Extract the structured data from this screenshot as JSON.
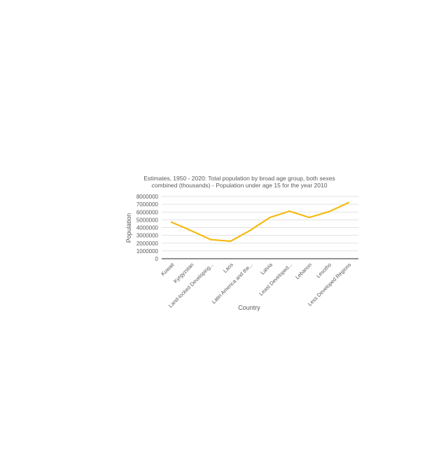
{
  "chart_data": {
    "type": "line",
    "title_line1": "Estimates, 1950 - 2020: Total population by broad age group, both sexes",
    "title_line2": "combined (thousands) - Population under age 15 for the year 2010",
    "xlabel": "Country",
    "ylabel": "Population",
    "categories": [
      "Kuwait",
      "Kyrgyzstan",
      "Land-locked Developing...",
      "Laos",
      "Latin America and the...",
      "Latvia",
      "Least Developed...",
      "Lebanon",
      "Lesotho",
      "Less Developed Regions"
    ],
    "values": [
      4700000,
      3600000,
      2450000,
      2250000,
      3650000,
      5300000,
      6100000,
      5300000,
      6050000,
      7200000
    ],
    "ylim": [
      0,
      8000000
    ],
    "yticks": [
      "0",
      "1000000",
      "2000000",
      "3000000",
      "4000000",
      "5000000",
      "6000000",
      "7000000",
      "8000000"
    ],
    "grid": true,
    "legend": "none",
    "line_color": "#F5BA12",
    "grid_color": "#D9D9D9",
    "axis_color": "#262626"
  }
}
